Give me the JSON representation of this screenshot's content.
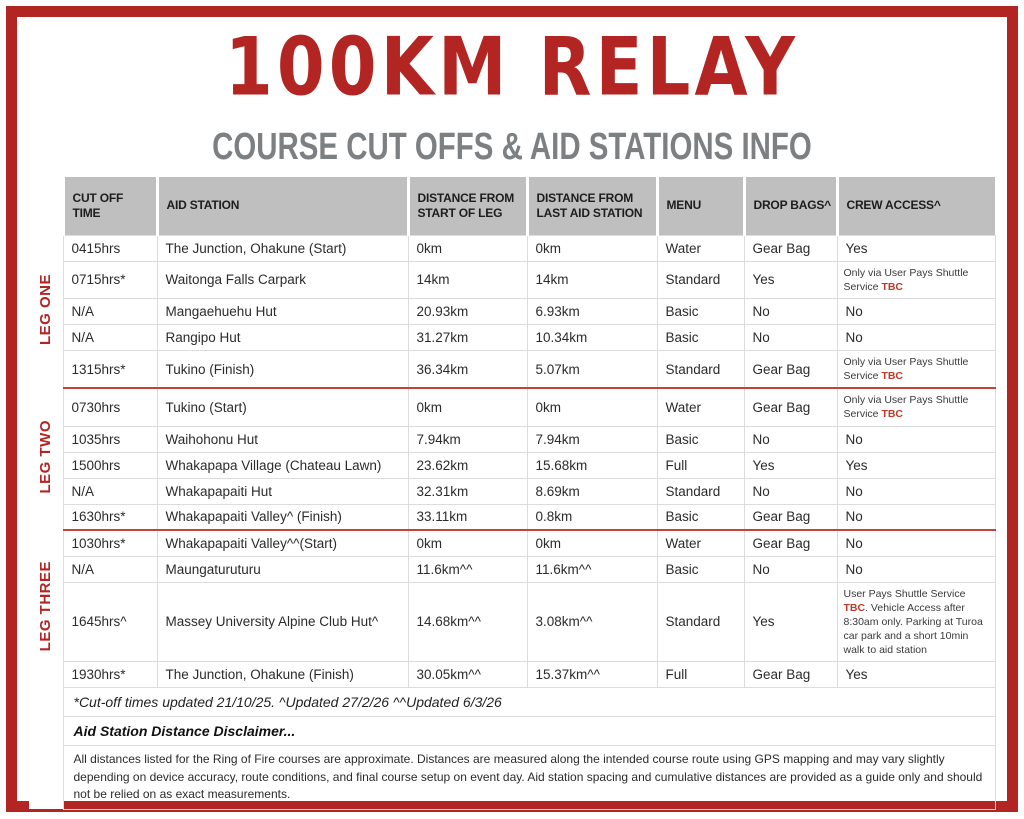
{
  "header": {
    "title": "100KM RELAY",
    "subtitle": "COURSE CUT OFFS & AID STATIONS INFO"
  },
  "colors": {
    "accent_red": "#b32522",
    "divider_red": "#c4423a",
    "header_bg": "#bfbfbf",
    "tbc_red": "#c0392b",
    "subtitle_gray": "#7d8083"
  },
  "table": {
    "columns": [
      "CUT OFF TIME",
      "AID STATION",
      "DISTANCE FROM START OF LEG",
      "DISTANCE FROM LAST AID STATION",
      "MENU",
      "DROP BAGS^",
      "CREW ACCESS^"
    ],
    "legs": [
      {
        "label": "LEG ONE",
        "rows": [
          {
            "cut_off": "0415hrs",
            "aid_station": "The Junction, Ohakune (Start)",
            "dist_start": "0km",
            "dist_last": "0km",
            "menu": "Water",
            "drop_bags": "Gear Bag",
            "crew_small": false,
            "crew": [
              {
                "t": "Yes"
              }
            ]
          },
          {
            "cut_off": "0715hrs*",
            "aid_station": "Waitonga Falls Carpark",
            "dist_start": "14km",
            "dist_last": "14km",
            "menu": "Standard",
            "drop_bags": "Yes",
            "crew_small": true,
            "crew": [
              {
                "t": "Only via User Pays Shuttle Service "
              },
              {
                "t": "TBC",
                "red": true
              }
            ]
          },
          {
            "cut_off": "N/A",
            "aid_station": "Mangaehuehu Hut",
            "dist_start": "20.93km",
            "dist_last": "6.93km",
            "menu": "Basic",
            "drop_bags": "No",
            "crew_small": false,
            "crew": [
              {
                "t": "No"
              }
            ]
          },
          {
            "cut_off": "N/A",
            "aid_station": "Rangipo Hut",
            "dist_start": "31.27km",
            "dist_last": "10.34km",
            "menu": "Basic",
            "drop_bags": "No",
            "crew_small": false,
            "crew": [
              {
                "t": "No"
              }
            ]
          },
          {
            "cut_off": "1315hrs*",
            "aid_station": "Tukino (Finish)",
            "dist_start": "36.34km",
            "dist_last": "5.07km",
            "menu": "Standard",
            "drop_bags": "Gear Bag",
            "crew_small": true,
            "crew": [
              {
                "t": "Only via User Pays Shuttle Service "
              },
              {
                "t": "TBC",
                "red": true
              }
            ]
          }
        ]
      },
      {
        "label": "LEG TWO",
        "rows": [
          {
            "cut_off": "0730hrs",
            "aid_station": "Tukino (Start)",
            "dist_start": "0km",
            "dist_last": "0km",
            "menu": "Water",
            "drop_bags": "Gear Bag",
            "crew_small": true,
            "crew": [
              {
                "t": "Only via User Pays Shuttle Service "
              },
              {
                "t": "TBC",
                "red": true
              }
            ]
          },
          {
            "cut_off": "1035hrs",
            "aid_station": "Waihohonu Hut",
            "dist_start": "7.94km",
            "dist_last": "7.94km",
            "menu": "Basic",
            "drop_bags": "No",
            "crew_small": false,
            "crew": [
              {
                "t": "No"
              }
            ]
          },
          {
            "cut_off": "1500hrs",
            "aid_station": "Whakapapa Village (Chateau Lawn)",
            "dist_start": "23.62km",
            "dist_last": "15.68km",
            "menu": "Full",
            "drop_bags": "Yes",
            "crew_small": false,
            "crew": [
              {
                "t": "Yes"
              }
            ]
          },
          {
            "cut_off": "N/A",
            "aid_station": "Whakapapaiti Hut",
            "dist_start": "32.31km",
            "dist_last": "8.69km",
            "menu": "Standard",
            "drop_bags": "No",
            "crew_small": false,
            "crew": [
              {
                "t": "No"
              }
            ]
          },
          {
            "cut_off": "1630hrs*",
            "aid_station": "Whakapapaiti Valley^ (Finish)",
            "dist_start": "33.11km",
            "dist_last": "0.8km",
            "menu": "Basic",
            "drop_bags": "Gear Bag",
            "crew_small": false,
            "crew": [
              {
                "t": "No"
              }
            ]
          }
        ]
      },
      {
        "label": "LEG THREE",
        "rows": [
          {
            "cut_off": "1030hrs*",
            "aid_station": "Whakapapaiti Valley^^(Start)",
            "dist_start": "0km",
            "dist_last": "0km",
            "menu": "Water",
            "drop_bags": "Gear Bag",
            "crew_small": false,
            "crew": [
              {
                "t": "No"
              }
            ]
          },
          {
            "cut_off": "N/A",
            "aid_station": "Maungaturuturu",
            "dist_start": "11.6km^^",
            "dist_last": "11.6km^^",
            "menu": "Basic",
            "drop_bags": "No",
            "crew_small": false,
            "crew": [
              {
                "t": "No"
              }
            ]
          },
          {
            "cut_off": "1645hrs^",
            "aid_station": "Massey University Alpine Club Hut^",
            "dist_start": "14.68km^^",
            "dist_last": "3.08km^^",
            "menu": "Standard",
            "drop_bags": "Yes",
            "crew_small": true,
            "crew": [
              {
                "t": "User Pays Shuttle Service "
              },
              {
                "t": "TBC",
                "red": true
              },
              {
                "t": ". Vehicle Access after 8:30am only. Parking at Turoa car park and a short 10min walk to aid station"
              }
            ]
          },
          {
            "cut_off": "1930hrs*",
            "aid_station": "The Junction, Ohakune (Finish)",
            "dist_start": "30.05km^^",
            "dist_last": "15.37km^^",
            "menu": "Full",
            "drop_bags": "Gear Bag",
            "crew_small": false,
            "crew": [
              {
                "t": "Yes"
              }
            ]
          }
        ]
      }
    ],
    "footnote": "*Cut-off times updated 21/10/25. ^Updated 27/2/26 ^^Updated 6/3/26",
    "disclaimer_title": "Aid Station Distance Disclaimer...",
    "disclaimer_body": "All distances listed for the Ring of Fire courses are approximate. Distances are measured along the intended course route using GPS mapping and may vary slightly depending on device accuracy, route conditions, and final course setup on event day. Aid station spacing and cumulative distances are provided as a guide only and should not be relied on as exact measurements."
  }
}
